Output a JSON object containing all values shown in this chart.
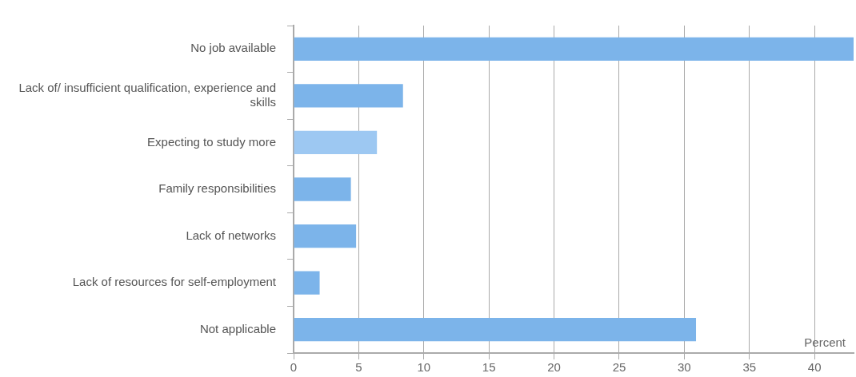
{
  "chart_data": {
    "type": "bar",
    "orientation": "horizontal",
    "categories": [
      "No job available",
      "Lack of/ insufficient qualification, experience and skills",
      "Expecting to study more",
      "Family responsibilities",
      "Lack of networks",
      "Lack of resources for self-employment",
      "Not applicable"
    ],
    "values": [
      43,
      8.4,
      6.4,
      4.4,
      4.8,
      2.0,
      30.9
    ],
    "colors": [
      "#7cb4ea",
      "#7cb4ea",
      "#9dc8f2",
      "#7cb4ea",
      "#7cb4ea",
      "#7cb4ea",
      "#7cb4ea"
    ],
    "xlabel": "Percent",
    "xlim": [
      0,
      43
    ],
    "xticks": [
      0,
      5,
      10,
      15,
      20,
      25,
      30,
      35,
      40
    ],
    "grid": "x",
    "legend": false
  }
}
